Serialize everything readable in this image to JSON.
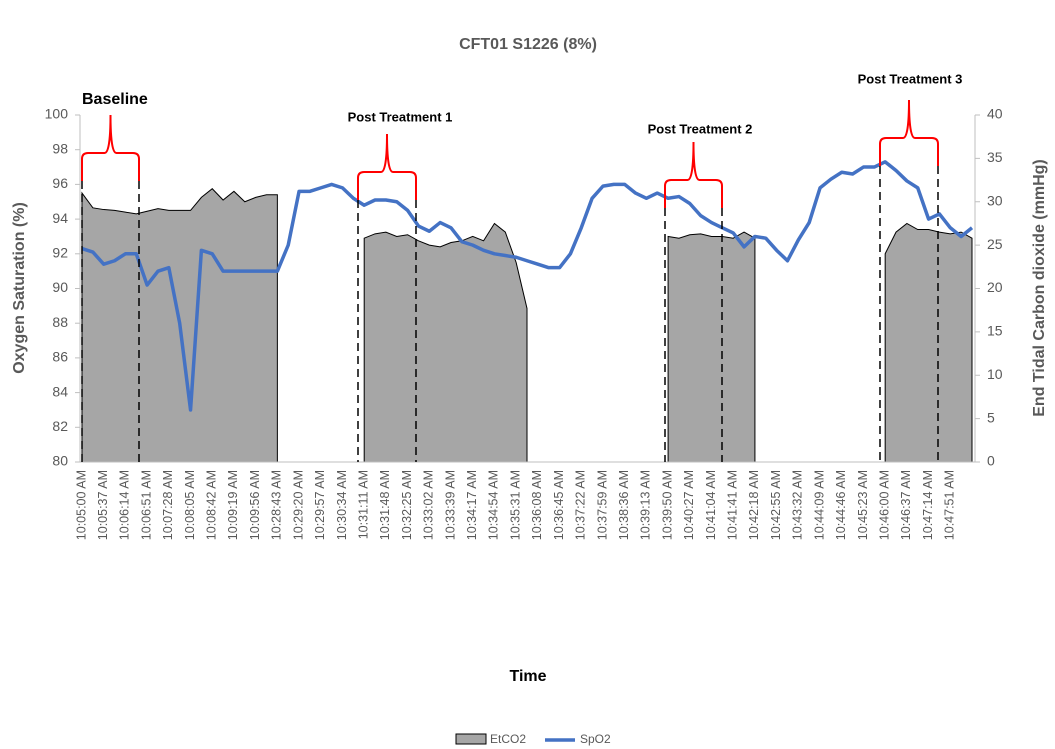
{
  "chart_data": {
    "type": "combo",
    "title": "CFT01 S1226 (8%)",
    "xlabel": "Time",
    "ylabel": "Oxygen Saturation (%)",
    "y2label": "End Tidal Carbon dioxide (mmHg)",
    "annotations": [
      "Baseline",
      "Post Treatment 1",
      "Post Treatment 2",
      "Post Treatment 3"
    ],
    "categories": [
      "10:05:00 AM",
      null,
      "10:05:37 AM",
      null,
      "10:06:14 AM",
      null,
      "10:06:51 AM",
      null,
      "10:07:28 AM",
      null,
      "10:08:05 AM",
      null,
      "10:08:42 AM",
      null,
      "10:09:19 AM",
      null,
      "10:09:56 AM",
      null,
      "10:28:43 AM",
      null,
      "10:29:20 AM",
      null,
      "10:29:57 AM",
      null,
      "10:30:34 AM",
      null,
      "10:31:11 AM",
      null,
      "10:31:48 AM",
      null,
      "10:32:25 AM",
      null,
      "10:33:02 AM",
      null,
      "10:33:39 AM",
      null,
      "10:34:17 AM",
      null,
      "10:34:54 AM",
      null,
      "10:35:31 AM",
      null,
      "10:36:08 AM",
      null,
      "10:36:45 AM",
      null,
      "10:37:22 AM",
      null,
      "10:37:59 AM",
      null,
      "10:38:36 AM",
      null,
      "10:39:13 AM",
      null,
      "10:39:50 AM",
      null,
      "10:40:27 AM",
      null,
      "10:41:04 AM",
      null,
      "10:41:41 AM",
      null,
      "10:42:18 AM",
      null,
      "10:42:55 AM",
      null,
      "10:43:32 AM",
      null,
      "10:44:09 AM",
      null,
      "10:44:46 AM",
      null,
      "10:45:23 AM",
      null,
      "10:46:00 AM",
      null,
      "10:46:37 AM",
      null,
      "10:47:14 AM",
      null,
      "10:47:51 AM",
      null,
      null
    ],
    "series": [
      {
        "name": "EtCO2",
        "type": "area",
        "axis": "y2",
        "color": "#a6a6a6",
        "values": [
          31,
          29.3,
          29.1,
          29,
          28.8,
          28.6,
          28.9,
          29.2,
          29,
          29,
          29,
          30.5,
          31.5,
          30.2,
          31.2,
          30,
          30.5,
          30.8,
          30.8,
          null,
          null,
          null,
          null,
          null,
          null,
          null,
          25.8,
          26.3,
          26.5,
          26,
          26.2,
          25.5,
          25,
          24.8,
          25.3,
          25.5,
          26,
          25.5,
          27.5,
          26.5,
          23,
          17.7,
          null,
          null,
          null,
          null,
          null,
          null,
          null,
          null,
          null,
          null,
          null,
          null,
          26,
          25.8,
          26.2,
          26.3,
          26,
          26,
          25.8,
          26.5,
          25.8,
          null,
          null,
          null,
          null,
          null,
          null,
          null,
          null,
          null,
          null,
          null,
          24,
          26.5,
          27.5,
          26.8,
          26.8,
          26.5,
          26.3,
          26.5,
          25.8
        ]
      },
      {
        "name": "SpO2",
        "type": "line",
        "color": "#4472c4",
        "values": [
          92.3,
          92.1,
          91.4,
          91.6,
          92,
          92,
          90.2,
          91,
          91.2,
          88,
          83,
          92.2,
          92,
          91,
          91,
          91,
          91,
          91,
          91,
          92.5,
          95.6,
          95.6,
          95.8,
          96,
          95.8,
          95.2,
          94.8,
          95.1,
          95.1,
          95,
          94.5,
          93.6,
          93.3,
          93.8,
          93.5,
          92.7,
          92.5,
          92.2,
          92,
          91.9,
          91.8,
          91.6,
          91.4,
          91.2,
          91.2,
          92,
          93.5,
          95.2,
          95.9,
          96,
          96,
          95.5,
          95.2,
          95.5,
          95.2,
          95.3,
          94.9,
          94.2,
          93.8,
          93.5,
          93.2,
          92.4,
          93,
          92.9,
          92.2,
          91.6,
          92.8,
          93.8,
          95.8,
          96.3,
          96.7,
          96.6,
          97,
          97,
          97.3,
          96.8,
          96.2,
          95.8,
          94,
          94.3,
          93.5,
          93,
          93.5
        ]
      }
    ],
    "ylim": [
      80,
      100
    ],
    "yticks": [
      80,
      82,
      84,
      86,
      88,
      90,
      92,
      94,
      96,
      98,
      100
    ],
    "y2lim": [
      0,
      40
    ],
    "y2ticks": [
      0,
      5,
      10,
      15,
      20,
      25,
      30,
      35,
      40
    ],
    "legend": "bottom"
  }
}
